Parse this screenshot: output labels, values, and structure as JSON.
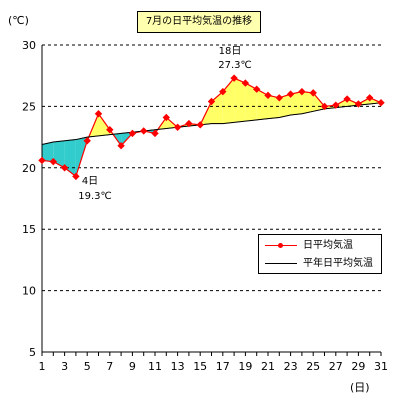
{
  "chart_data": {
    "type": "line",
    "title": "7月の日平均気温の推移",
    "y_unit": "(℃)",
    "x_unit": "(日)",
    "ylim": [
      5,
      30
    ],
    "y_ticks": [
      "5",
      "10",
      "15",
      "20",
      "25",
      "30"
    ],
    "xlim": [
      1,
      31
    ],
    "x_ticks": [
      "1",
      "3",
      "5",
      "7",
      "9",
      "11",
      "13",
      "15",
      "17",
      "19",
      "21",
      "23",
      "25",
      "27",
      "29",
      "31"
    ],
    "x": [
      1,
      2,
      3,
      4,
      5,
      6,
      7,
      8,
      9,
      10,
      11,
      12,
      13,
      14,
      15,
      16,
      17,
      18,
      19,
      20,
      21,
      22,
      23,
      24,
      25,
      26,
      27,
      28,
      29,
      30,
      31
    ],
    "grid": "horizontal dashed",
    "legend_position": "lower-right",
    "series": [
      {
        "name": "日平均気温",
        "color": "#ff0000",
        "marker": "diamond",
        "values": [
          20.6,
          20.5,
          20.0,
          19.3,
          22.2,
          24.4,
          23.1,
          21.8,
          22.8,
          23.0,
          22.8,
          24.1,
          23.3,
          23.6,
          23.5,
          25.4,
          26.2,
          27.3,
          26.9,
          26.4,
          25.9,
          25.7,
          26.0,
          26.2,
          26.1,
          25.0,
          25.1,
          25.6,
          25.2,
          25.7,
          25.3
        ]
      },
      {
        "name": "平年日平均気温",
        "color": "#000000",
        "values": [
          21.9,
          22.1,
          22.2,
          22.3,
          22.5,
          22.6,
          22.7,
          22.8,
          22.9,
          23.0,
          23.1,
          23.2,
          23.3,
          23.4,
          23.5,
          23.6,
          23.6,
          23.7,
          23.8,
          23.9,
          24.0,
          24.1,
          24.3,
          24.4,
          24.6,
          24.8,
          24.9,
          25.0,
          25.1,
          25.2,
          25.3
        ]
      }
    ],
    "fill_above_color": "#ffff66",
    "fill_below_color": "#33cccc",
    "annotations": [
      {
        "day": 4,
        "label_day": "4日",
        "label_value": "19.3℃"
      },
      {
        "day": 18,
        "label_day": "18日",
        "label_value": "27.3℃"
      }
    ]
  }
}
